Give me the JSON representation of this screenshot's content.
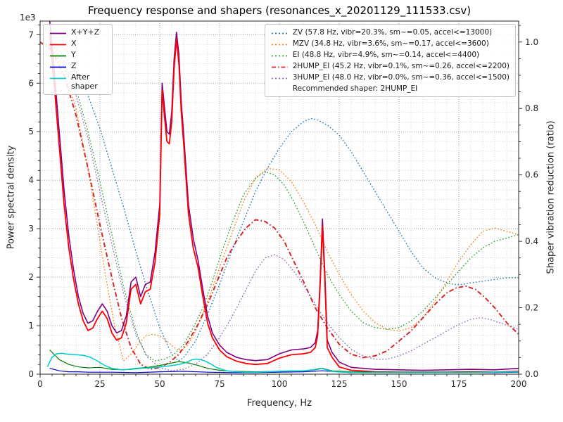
{
  "chart_data": {
    "type": "line",
    "title": "Frequency response and shapers (resonances_x_20201129_111533.csv)",
    "xlabel": "Frequency, Hz",
    "ylabel_left": "Power spectral density",
    "ylabel_right": "Shaper vibration reduction (ratio)",
    "offset_text": "1e3",
    "xlim": [
      0,
      200
    ],
    "x_major_ticks": [
      0,
      25,
      50,
      75,
      100,
      125,
      150,
      175,
      200
    ],
    "x_minor_step": 5,
    "ylim_left_e3": [
      0,
      7.28
    ],
    "y_left_major_ticks": [
      0,
      1,
      2,
      3,
      4,
      5,
      6,
      7
    ],
    "y_left_minor_step": 0.2,
    "ylim_right": [
      0,
      1.063
    ],
    "y_right_major_ticks": [
      "0.0",
      "0.2",
      "0.4",
      "0.6",
      "0.8",
      "1.0"
    ],
    "y_right_minor_step": 0.05,
    "grid": true,
    "legend_note": "Recommended shaper: 2HUMP_EI",
    "psd_series": [
      {
        "name": "X+Y+Z",
        "color": "#800080",
        "style": "solid",
        "width": 1.6,
        "x": [
          4,
          6,
          8,
          10,
          12,
          14,
          16,
          18,
          20,
          22,
          24,
          26,
          28,
          30,
          32,
          34,
          36,
          38,
          40,
          42,
          44,
          46,
          48,
          50,
          51,
          52,
          53,
          54,
          55,
          56,
          57,
          58,
          59,
          60,
          62,
          64,
          66,
          68,
          70,
          72,
          75,
          78,
          82,
          86,
          90,
          95,
          100,
          105,
          110,
          113,
          115,
          116,
          117,
          118,
          119,
          120,
          122,
          125,
          130,
          140,
          150,
          160,
          170,
          180,
          190,
          200
        ],
        "y_e3": [
          7.3,
          6.2,
          5.0,
          3.8,
          2.85,
          2.15,
          1.6,
          1.25,
          1.05,
          1.1,
          1.3,
          1.45,
          1.3,
          1.0,
          0.85,
          0.9,
          1.2,
          1.9,
          2.0,
          1.6,
          1.85,
          1.9,
          2.5,
          3.5,
          6.0,
          5.5,
          5.0,
          4.95,
          5.4,
          6.5,
          7.05,
          6.6,
          5.6,
          4.95,
          3.5,
          2.8,
          2.35,
          1.75,
          1.2,
          0.85,
          0.6,
          0.45,
          0.35,
          0.3,
          0.28,
          0.3,
          0.42,
          0.5,
          0.52,
          0.55,
          0.65,
          0.9,
          1.9,
          3.2,
          2.1,
          0.7,
          0.45,
          0.25,
          0.14,
          0.1,
          0.09,
          0.08,
          0.09,
          0.1,
          0.09,
          0.12
        ]
      },
      {
        "name": "X",
        "color": "#ff0000",
        "style": "solid",
        "width": 1.8,
        "x": [
          4,
          6,
          8,
          10,
          12,
          14,
          16,
          18,
          20,
          22,
          24,
          26,
          28,
          30,
          32,
          34,
          36,
          38,
          40,
          42,
          44,
          46,
          48,
          50,
          51,
          52,
          53,
          54,
          55,
          56,
          57,
          58,
          59,
          60,
          62,
          64,
          66,
          68,
          70,
          72,
          75,
          78,
          82,
          86,
          90,
          95,
          100,
          105,
          110,
          113,
          115,
          116,
          117,
          118,
          119,
          120,
          122,
          125,
          130,
          140,
          150,
          160,
          170,
          180,
          190,
          200
        ],
        "y_e3": [
          7.0,
          5.9,
          4.7,
          3.5,
          2.6,
          1.95,
          1.45,
          1.1,
          0.9,
          0.95,
          1.15,
          1.3,
          1.15,
          0.85,
          0.7,
          0.75,
          1.05,
          1.75,
          1.85,
          1.45,
          1.7,
          1.75,
          2.3,
          3.3,
          5.85,
          5.3,
          4.8,
          4.75,
          5.2,
          6.3,
          6.9,
          6.4,
          5.4,
          4.75,
          3.3,
          2.6,
          2.2,
          1.6,
          1.05,
          0.75,
          0.5,
          0.36,
          0.27,
          0.22,
          0.2,
          0.22,
          0.33,
          0.4,
          0.42,
          0.45,
          0.55,
          0.8,
          1.8,
          3.05,
          1.95,
          0.55,
          0.35,
          0.15,
          0.08,
          0.05,
          0.04,
          0.04,
          0.04,
          0.05,
          0.04,
          0.06
        ]
      },
      {
        "name": "Y",
        "color": "#008000",
        "style": "solid",
        "width": 1.2,
        "x": [
          4,
          8,
          12,
          16,
          20,
          25,
          30,
          35,
          40,
          45,
          50,
          54,
          58,
          62,
          66,
          70,
          75,
          80,
          90,
          100,
          110,
          115,
          118,
          122,
          130,
          140,
          160,
          180,
          200
        ],
        "y_e3": [
          0.5,
          0.3,
          0.2,
          0.15,
          0.13,
          0.14,
          0.1,
          0.09,
          0.12,
          0.14,
          0.18,
          0.22,
          0.26,
          0.23,
          0.18,
          0.12,
          0.08,
          0.06,
          0.05,
          0.06,
          0.07,
          0.09,
          0.12,
          0.07,
          0.05,
          0.04,
          0.04,
          0.04,
          0.05
        ]
      },
      {
        "name": "Z",
        "color": "#0000cc",
        "style": "solid",
        "width": 1.2,
        "x": [
          4,
          8,
          12,
          16,
          20,
          30,
          40,
          50,
          60,
          70,
          80,
          90,
          100,
          110,
          118,
          130,
          150,
          170,
          190,
          200
        ],
        "y_e3": [
          0.12,
          0.07,
          0.05,
          0.05,
          0.04,
          0.04,
          0.03,
          0.05,
          0.06,
          0.04,
          0.03,
          0.03,
          0.04,
          0.05,
          0.07,
          0.03,
          0.03,
          0.03,
          0.03,
          0.04
        ]
      },
      {
        "name": "After shaper",
        "color": "#00cccc",
        "style": "solid",
        "width": 1.5,
        "x": [
          3,
          5,
          7,
          9,
          12,
          15,
          18,
          21,
          24,
          27,
          30,
          34,
          38,
          42,
          46,
          50,
          54,
          58,
          61,
          63,
          65,
          67,
          69,
          71,
          74,
          78,
          82,
          86,
          90,
          95,
          100,
          105,
          110,
          114,
          117,
          119,
          121,
          124,
          128,
          134,
          140,
          150,
          160,
          170,
          180,
          190,
          200
        ],
        "y_e3": [
          0.15,
          0.35,
          0.42,
          0.43,
          0.41,
          0.4,
          0.39,
          0.35,
          0.27,
          0.18,
          0.12,
          0.09,
          0.1,
          0.12,
          0.13,
          0.15,
          0.17,
          0.2,
          0.24,
          0.29,
          0.31,
          0.3,
          0.27,
          0.22,
          0.13,
          0.07,
          0.05,
          0.04,
          0.04,
          0.05,
          0.06,
          0.07,
          0.07,
          0.09,
          0.12,
          0.1,
          0.07,
          0.05,
          0.04,
          0.03,
          0.03,
          0.03,
          0.03,
          0.03,
          0.03,
          0.04,
          0.05
        ]
      }
    ],
    "shaper_series": [
      {
        "name": "ZV",
        "label": "ZV (57.8 Hz, vibr=20.3%, sm~=0.05, accel<=13000)",
        "color": "#1f77b4",
        "style": "dotted",
        "x": [
          0,
          5,
          10,
          15,
          20,
          25,
          30,
          35,
          40,
          45,
          50,
          55,
          57.8,
          60,
          65,
          70,
          75,
          80,
          85,
          90,
          95,
          100,
          105,
          110,
          113,
          116,
          120,
          125,
          130,
          135,
          140,
          145,
          150,
          155,
          160,
          165,
          170,
          173,
          176,
          180,
          185,
          190,
          195,
          200
        ],
        "y": [
          1.0,
          0.99,
          0.96,
          0.91,
          0.84,
          0.74,
          0.62,
          0.5,
          0.37,
          0.25,
          0.14,
          0.06,
          0.04,
          0.05,
          0.1,
          0.18,
          0.27,
          0.37,
          0.46,
          0.55,
          0.62,
          0.68,
          0.73,
          0.76,
          0.77,
          0.765,
          0.75,
          0.72,
          0.67,
          0.61,
          0.55,
          0.49,
          0.43,
          0.37,
          0.32,
          0.29,
          0.275,
          0.27,
          0.27,
          0.275,
          0.28,
          0.285,
          0.29,
          0.29
        ]
      },
      {
        "name": "MZV",
        "label": "MZV (34.8 Hz, vibr=3.6%, sm~=0.17, accel<=3600)",
        "color": "#ff7f0e",
        "style": "dotted",
        "x": [
          0,
          5,
          10,
          15,
          20,
          25,
          28,
          31,
          34.8,
          38,
          41,
          44,
          47,
          50,
          53,
          56,
          59,
          62,
          65,
          70,
          75,
          80,
          85,
          90,
          95,
          100,
          105,
          110,
          115,
          120,
          125,
          130,
          135,
          140,
          145,
          150,
          155,
          160,
          165,
          170,
          175,
          180,
          185,
          190,
          195,
          200
        ],
        "y": [
          1.0,
          0.98,
          0.92,
          0.8,
          0.62,
          0.4,
          0.27,
          0.15,
          0.04,
          0.06,
          0.09,
          0.115,
          0.12,
          0.115,
          0.1,
          0.08,
          0.07,
          0.09,
          0.13,
          0.22,
          0.32,
          0.42,
          0.52,
          0.59,
          0.62,
          0.615,
          0.58,
          0.52,
          0.45,
          0.37,
          0.3,
          0.24,
          0.19,
          0.155,
          0.135,
          0.13,
          0.14,
          0.17,
          0.22,
          0.28,
          0.34,
          0.39,
          0.43,
          0.44,
          0.43,
          0.42
        ]
      },
      {
        "name": "EI",
        "label": "EI (48.8 Hz, vibr=4.9%, sm~=0.14, accel<=4400)",
        "color": "#2ca02c",
        "style": "dotted",
        "x": [
          0,
          5,
          10,
          15,
          20,
          25,
          30,
          35,
          40,
          44,
          48,
          52,
          56,
          60,
          64,
          68,
          72,
          76,
          80,
          85,
          90,
          94,
          98,
          102,
          106,
          110,
          115,
          120,
          125,
          130,
          135,
          140,
          145,
          150,
          155,
          160,
          165,
          170,
          175,
          180,
          185,
          190,
          195,
          200
        ],
        "y": [
          1.0,
          0.985,
          0.94,
          0.86,
          0.73,
          0.58,
          0.42,
          0.26,
          0.13,
          0.06,
          0.04,
          0.045,
          0.06,
          0.09,
          0.14,
          0.2,
          0.28,
          0.37,
          0.45,
          0.54,
          0.59,
          0.61,
          0.6,
          0.57,
          0.52,
          0.46,
          0.38,
          0.3,
          0.24,
          0.19,
          0.155,
          0.14,
          0.135,
          0.14,
          0.16,
          0.19,
          0.23,
          0.27,
          0.31,
          0.35,
          0.38,
          0.4,
          0.41,
          0.42
        ]
      },
      {
        "name": "2HUMP_EI",
        "label": "2HUMP_EI (45.2 Hz, vibr=0.1%, sm~=0.26, accel<=2200)",
        "color": "#d62728",
        "style": "dashdot",
        "x": [
          0,
          5,
          10,
          15,
          20,
          25,
          30,
          34,
          38,
          42,
          46,
          50,
          54,
          58,
          62,
          66,
          70,
          74,
          78,
          82,
          86,
          90,
          94,
          98,
          102,
          106,
          110,
          115,
          120,
          125,
          130,
          135,
          140,
          145,
          150,
          155,
          160,
          165,
          170,
          174,
          178,
          182,
          186,
          190,
          195,
          200
        ],
        "y": [
          1.0,
          0.975,
          0.9,
          0.78,
          0.62,
          0.45,
          0.29,
          0.17,
          0.08,
          0.03,
          0.015,
          0.02,
          0.035,
          0.06,
          0.1,
          0.15,
          0.21,
          0.28,
          0.35,
          0.4,
          0.44,
          0.465,
          0.46,
          0.44,
          0.4,
          0.34,
          0.28,
          0.2,
          0.14,
          0.09,
          0.06,
          0.05,
          0.055,
          0.07,
          0.1,
          0.13,
          0.17,
          0.21,
          0.245,
          0.26,
          0.265,
          0.255,
          0.23,
          0.2,
          0.155,
          0.12
        ]
      },
      {
        "name": "3HUMP_EI",
        "label": "3HUMP_EI (48.0 Hz, vibr=0.0%, sm~=0.36, accel<=1500)",
        "color": "#9467bd",
        "style": "dotted",
        "x": [
          0,
          5,
          10,
          15,
          20,
          25,
          30,
          35,
          40,
          45,
          50,
          55,
          60,
          65,
          70,
          75,
          80,
          85,
          90,
          94,
          98,
          102,
          106,
          110,
          115,
          120,
          125,
          130,
          135,
          140,
          145,
          150,
          155,
          160,
          165,
          170,
          175,
          180,
          184,
          188,
          192,
          196,
          200
        ],
        "y": [
          1.0,
          0.98,
          0.93,
          0.84,
          0.71,
          0.55,
          0.39,
          0.24,
          0.12,
          0.05,
          0.02,
          0.01,
          0.015,
          0.03,
          0.06,
          0.11,
          0.17,
          0.24,
          0.31,
          0.35,
          0.36,
          0.345,
          0.31,
          0.27,
          0.21,
          0.155,
          0.11,
          0.075,
          0.055,
          0.045,
          0.045,
          0.055,
          0.07,
          0.09,
          0.11,
          0.13,
          0.15,
          0.165,
          0.17,
          0.165,
          0.155,
          0.145,
          0.135
        ]
      }
    ]
  }
}
